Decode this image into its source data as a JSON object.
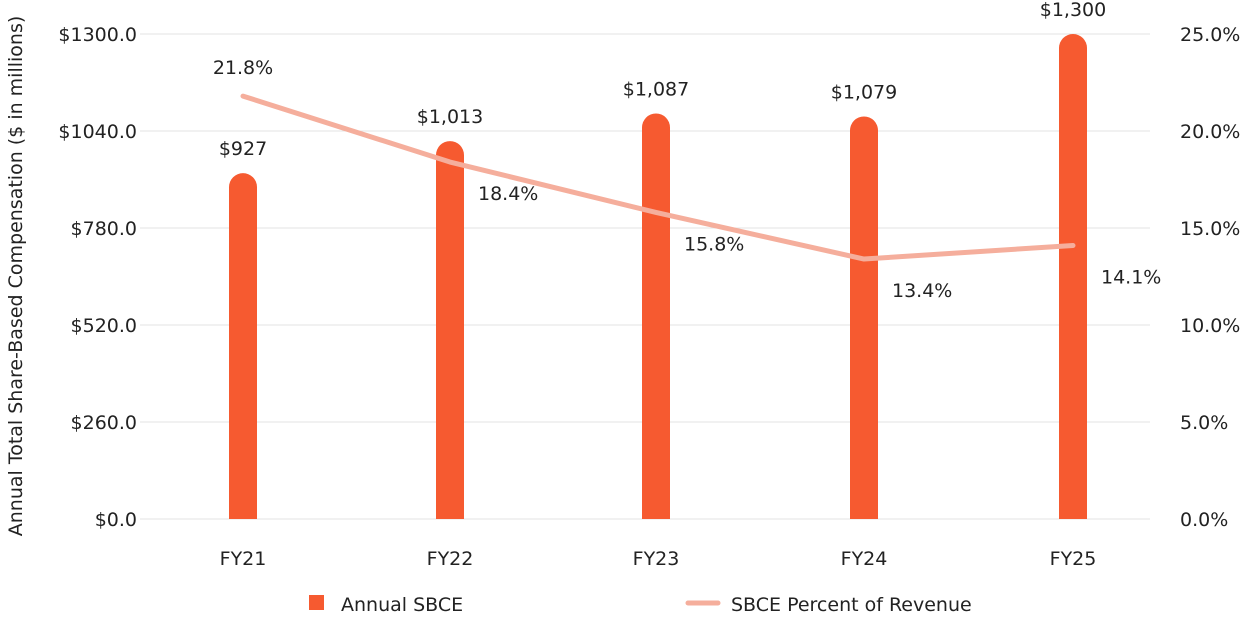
{
  "chart_data": {
    "type": "bar",
    "categories": [
      "FY21",
      "FY22",
      "FY23",
      "FY24",
      "FY25"
    ],
    "series": [
      {
        "name": "Annual SBCE",
        "type": "bar",
        "axis": "left",
        "values": [
          927,
          1013,
          1087,
          1079,
          1300
        ],
        "labels": [
          "$927",
          "$1,013",
          "$1,087",
          "$1,079",
          "$1,300"
        ],
        "color": "#f65a30"
      },
      {
        "name": "SBCE Percent of Revenue",
        "type": "line",
        "axis": "right",
        "values": [
          21.8,
          18.4,
          15.8,
          13.4,
          14.1
        ],
        "labels": [
          "21.8%",
          "18.4%",
          "15.8%",
          "13.4%",
          "14.1%"
        ],
        "color": "#f5ae9c"
      }
    ],
    "ylabel": "Annual Total Share-Based Compensation ($ in millions)",
    "ylim": [
      0,
      1300
    ],
    "y_ticks": [
      "$0.0",
      "$260.0",
      "$520.0",
      "$780.0",
      "$1040.0",
      "$1300.0"
    ],
    "y2lim": [
      0,
      25
    ],
    "y2_ticks": [
      "0.0%",
      "5.0%",
      "10.0%",
      "15.0%",
      "20.0%",
      "25.0%"
    ],
    "grid": true,
    "legend": "bottom"
  }
}
